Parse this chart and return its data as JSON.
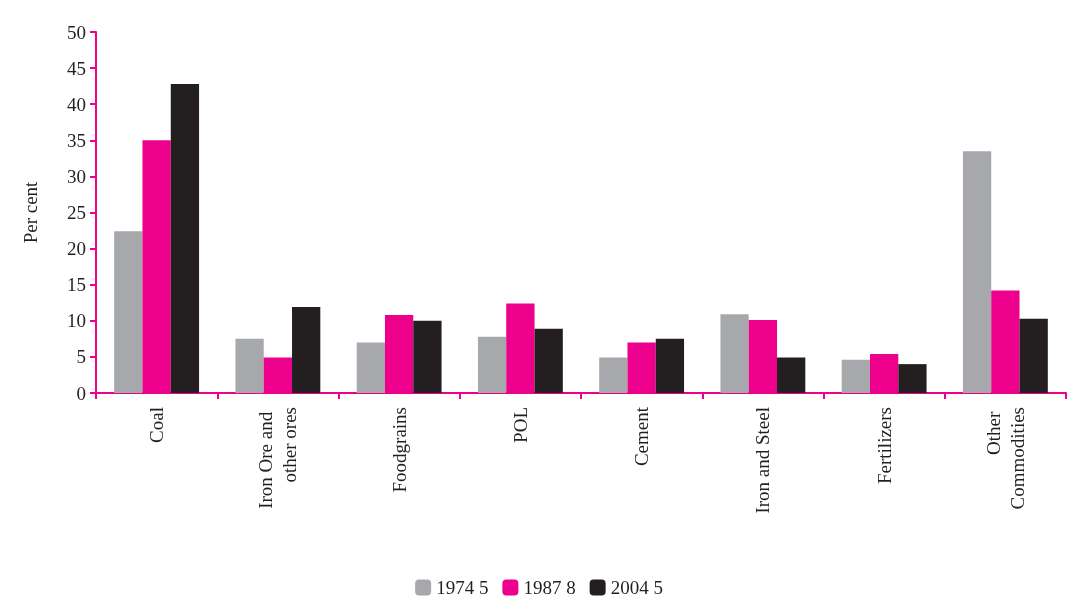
{
  "chart_data": {
    "type": "bar",
    "ylabel": "Per cent",
    "categories": [
      "Coal",
      "Iron Ore and other ores",
      "Foodgrains",
      "POL",
      "Cement",
      "Iron and Steel",
      "Fertilizers",
      "Other Commodities"
    ],
    "series": [
      {
        "name": "1974 5",
        "color": "#a7a8ac",
        "values": [
          22.4,
          7.5,
          7.0,
          7.8,
          4.9,
          10.9,
          4.6,
          33.5
        ]
      },
      {
        "name": "1987 8",
        "color": "#ec008c",
        "values": [
          35.0,
          4.9,
          10.8,
          12.4,
          7.0,
          10.1,
          5.4,
          14.2
        ]
      },
      {
        "name": "2004 5",
        "color": "#231f20",
        "values": [
          42.8,
          11.9,
          10.0,
          8.9,
          7.5,
          4.9,
          4.0,
          10.3
        ]
      }
    ],
    "ylim": [
      0,
      50
    ],
    "yticks": [
      0,
      5,
      10,
      15,
      20,
      25,
      30,
      35,
      40,
      45,
      50
    ],
    "grid": false,
    "legend": "bottom"
  }
}
